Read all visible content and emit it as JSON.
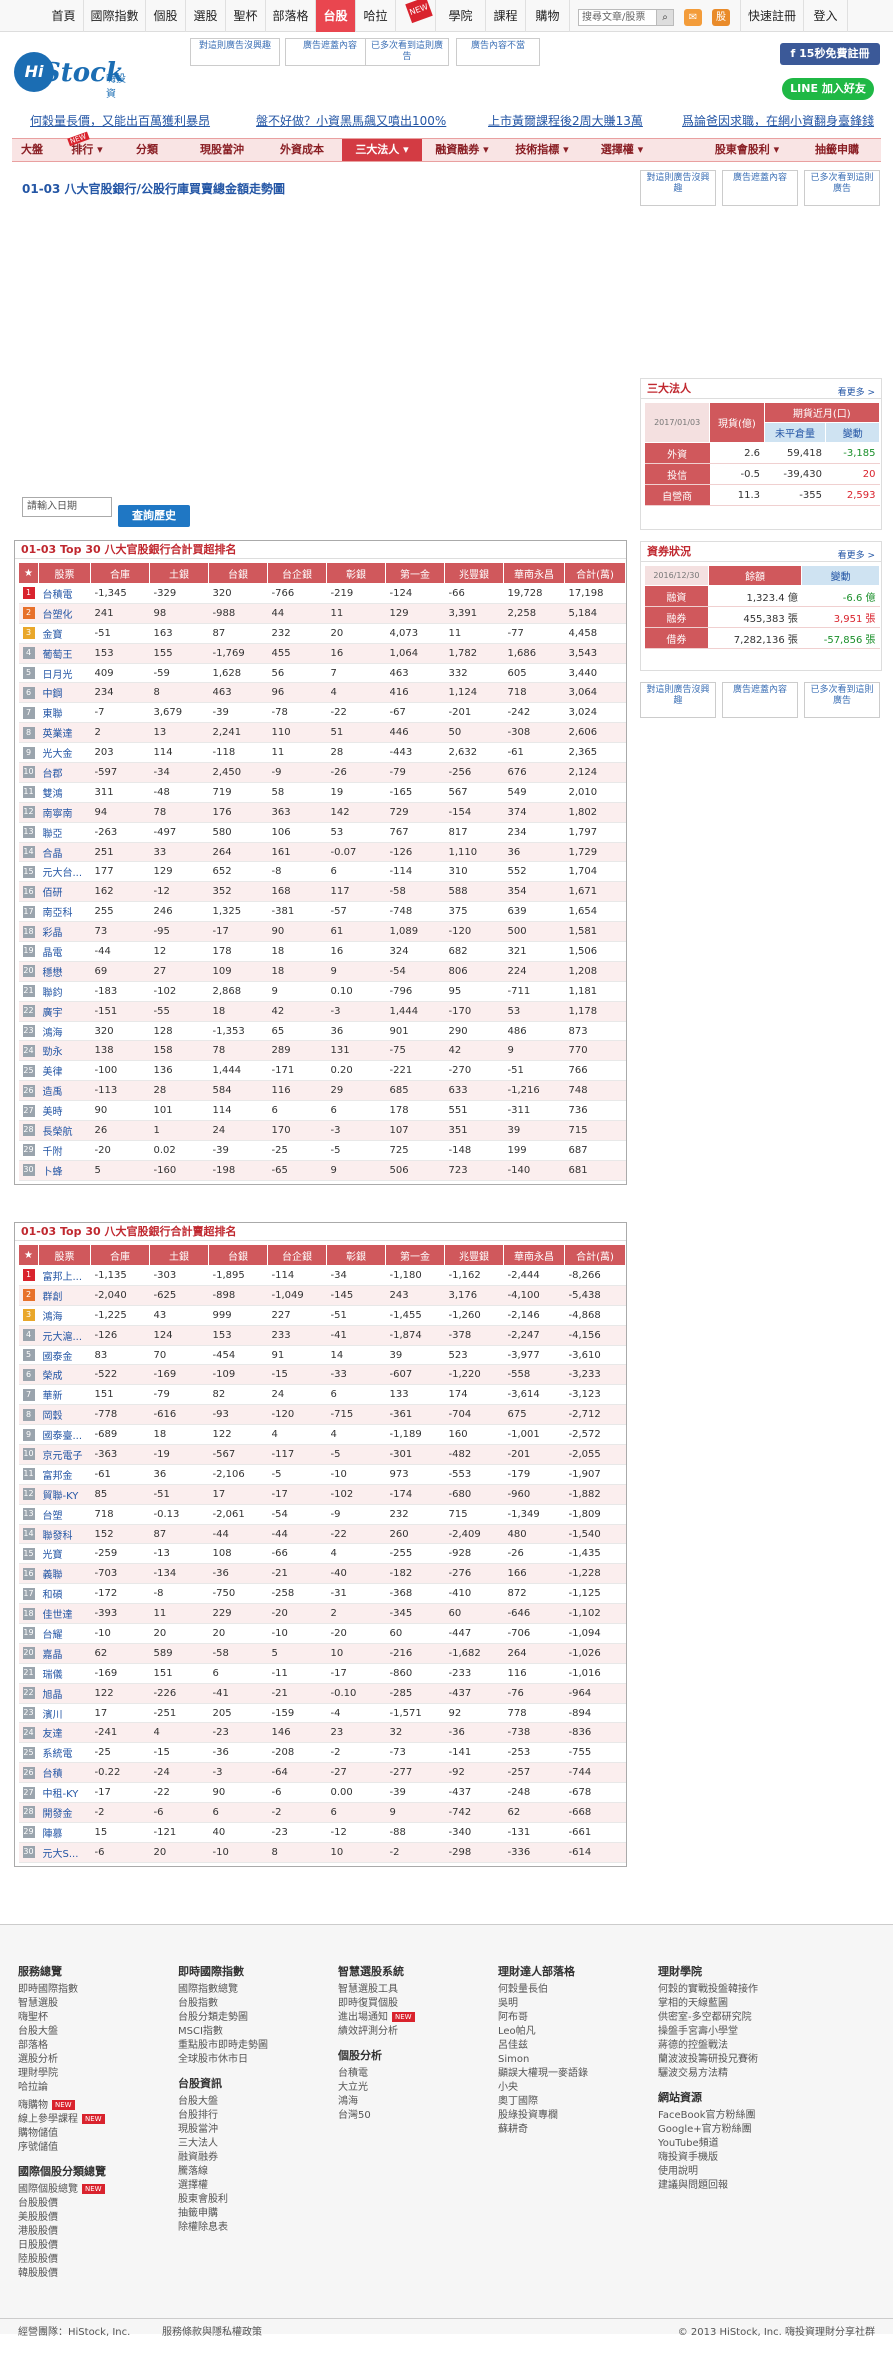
{
  "topnav": {
    "items": [
      "首頁",
      "國際指數",
      "個股",
      "選股",
      "聖杯",
      "部落格",
      "台股",
      "哈拉",
      "",
      "學院",
      "課程",
      "購物"
    ],
    "right": [
      "快速註冊",
      "登入"
    ],
    "search_placeholder": "搜尋文章/股票",
    "new_tag": "NEW"
  },
  "logo": {
    "hi": "Hi",
    "stock": "Stock",
    "sub": "嗨投資"
  },
  "ads": {
    "header": [
      "對這則廣告沒興趣",
      "廣告遮蓋內容",
      "已多次看到這則廣告",
      "廣告內容不當"
    ],
    "side": [
      "對這則廣告沒興趣",
      "廣告遮蓋內容",
      "已多次看到這則廣告"
    ]
  },
  "social": {
    "fb": "15秒免費註冊",
    "line": "加入好友"
  },
  "promos": [
    "何穀量長價，又能出百萬獲利暴昂",
    "盤不好做？小資黑馬飆又噴出100%",
    "上市黃爾課程後2周大賺13萬",
    "爲論爸因求職，在網小資翻身臺鋒錢"
  ],
  "mainnav": [
    "大盤",
    "排行 ▾",
    "分類",
    "現股當沖",
    "外資成本",
    "三大法人 ▾",
    "融資融券 ▾",
    "技術指標 ▾",
    "選擇權 ▾",
    "股東會股利 ▾",
    "抽籤申購"
  ],
  "page_title": "01-03 八大官股銀行/公股行庫買賣總金額走勢圖",
  "date_input": "請輸入日期",
  "query_btn": "查詢歷史",
  "headers": [
    "★",
    "股票",
    "合庫",
    "土銀",
    "台銀",
    "台企銀",
    "彰銀",
    "第一金",
    "兆豐銀",
    "華南永昌",
    "合計(萬)"
  ],
  "buy_table": {
    "title": "01-03 Top 30 八大官股銀行合計買超排名",
    "rows": [
      [
        "台積電",
        "-1,345",
        "-329",
        "320",
        "-766",
        "-219",
        "-124",
        "-66",
        "19,728",
        "17,198"
      ],
      [
        "台塑化",
        "241",
        "98",
        "-988",
        "44",
        "11",
        "129",
        "3,391",
        "2,258",
        "5,184"
      ],
      [
        "金寶",
        "-51",
        "163",
        "87",
        "232",
        "20",
        "4,073",
        "11",
        "-77",
        "4,458"
      ],
      [
        "葡萄王",
        "153",
        "155",
        "-1,769",
        "455",
        "16",
        "1,064",
        "1,782",
        "1,686",
        "3,543"
      ],
      [
        "日月光",
        "409",
        "-59",
        "1,628",
        "56",
        "7",
        "463",
        "332",
        "605",
        "3,440"
      ],
      [
        "中鋼",
        "234",
        "8",
        "463",
        "96",
        "4",
        "416",
        "1,124",
        "718",
        "3,064"
      ],
      [
        "東聯",
        "-7",
        "3,679",
        "-39",
        "-78",
        "-22",
        "-67",
        "-201",
        "-242",
        "3,024"
      ],
      [
        "英業達",
        "2",
        "13",
        "2,241",
        "110",
        "51",
        "446",
        "50",
        "-308",
        "2,606"
      ],
      [
        "光大金",
        "203",
        "114",
        "-118",
        "11",
        "28",
        "-443",
        "2,632",
        "-61",
        "2,365"
      ],
      [
        "台郡",
        "-597",
        "-34",
        "2,450",
        "-9",
        "-26",
        "-79",
        "-256",
        "676",
        "2,124"
      ],
      [
        "雙鴻",
        "311",
        "-48",
        "719",
        "58",
        "19",
        "-165",
        "567",
        "549",
        "2,010"
      ],
      [
        "南寧南",
        "94",
        "78",
        "176",
        "363",
        "142",
        "729",
        "-154",
        "374",
        "1,802"
      ],
      [
        "聯亞",
        "-263",
        "-497",
        "580",
        "106",
        "53",
        "767",
        "817",
        "234",
        "1,797"
      ],
      [
        "合晶",
        "251",
        "33",
        "264",
        "161",
        "-0.07",
        "-126",
        "1,110",
        "36",
        "1,729"
      ],
      [
        "元大台...",
        "177",
        "129",
        "652",
        "-8",
        "6",
        "-114",
        "310",
        "552",
        "1,704"
      ],
      [
        "佰研",
        "162",
        "-12",
        "352",
        "168",
        "117",
        "-58",
        "588",
        "354",
        "1,671"
      ],
      [
        "南亞科",
        "255",
        "246",
        "1,325",
        "-381",
        "-57",
        "-748",
        "375",
        "639",
        "1,654"
      ],
      [
        "彩晶",
        "73",
        "-95",
        "-17",
        "90",
        "61",
        "1,089",
        "-120",
        "500",
        "1,581"
      ],
      [
        "晶電",
        "-44",
        "12",
        "178",
        "18",
        "16",
        "324",
        "682",
        "321",
        "1,506"
      ],
      [
        "穩懋",
        "69",
        "27",
        "109",
        "18",
        "9",
        "-54",
        "806",
        "224",
        "1,208"
      ],
      [
        "聯鈞",
        "-183",
        "-102",
        "2,868",
        "9",
        "0.10",
        "-796",
        "95",
        "-711",
        "1,181"
      ],
      [
        "廣宇",
        "-151",
        "-55",
        "18",
        "42",
        "-3",
        "1,444",
        "-170",
        "53",
        "1,178"
      ],
      [
        "鴻海",
        "320",
        "128",
        "-1,353",
        "65",
        "36",
        "901",
        "290",
        "486",
        "873"
      ],
      [
        "勁永",
        "138",
        "158",
        "78",
        "289",
        "131",
        "-75",
        "42",
        "9",
        "770"
      ],
      [
        "美律",
        "-100",
        "136",
        "1,444",
        "-171",
        "0.20",
        "-221",
        "-270",
        "-51",
        "766"
      ],
      [
        "造禹",
        "-113",
        "28",
        "584",
        "116",
        "29",
        "685",
        "633",
        "-1,216",
        "748"
      ],
      [
        "美時",
        "90",
        "101",
        "114",
        "6",
        "6",
        "178",
        "551",
        "-311",
        "736"
      ],
      [
        "長榮航",
        "26",
        "1",
        "24",
        "170",
        "-3",
        "107",
        "351",
        "39",
        "715"
      ],
      [
        "千附",
        "-20",
        "0.02",
        "-39",
        "-25",
        "-5",
        "725",
        "-148",
        "199",
        "687"
      ],
      [
        "卜蜂",
        "5",
        "-160",
        "-198",
        "-65",
        "9",
        "506",
        "723",
        "-140",
        "681"
      ]
    ]
  },
  "sell_table": {
    "title": "01-03 Top 30 八大官股銀行合計賣超排名",
    "rows": [
      [
        "富邦上...",
        "-1,135",
        "-303",
        "-1,895",
        "-114",
        "-34",
        "-1,180",
        "-1,162",
        "-2,444",
        "-8,266"
      ],
      [
        "群創",
        "-2,040",
        "-625",
        "-898",
        "-1,049",
        "-145",
        "243",
        "3,176",
        "-4,100",
        "-5,438"
      ],
      [
        "鴻海",
        "-1,225",
        "43",
        "999",
        "227",
        "-51",
        "-1,455",
        "-1,260",
        "-2,146",
        "-4,868"
      ],
      [
        "元大滬...",
        "-126",
        "124",
        "153",
        "233",
        "-41",
        "-1,874",
        "-378",
        "-2,247",
        "-4,156"
      ],
      [
        "國泰金",
        "83",
        "70",
        "-454",
        "91",
        "14",
        "39",
        "523",
        "-3,977",
        "-3,610"
      ],
      [
        "榮成",
        "-522",
        "-169",
        "-109",
        "-15",
        "-33",
        "-607",
        "-1,220",
        "-558",
        "-3,233"
      ],
      [
        "華新",
        "151",
        "-79",
        "82",
        "24",
        "6",
        "133",
        "174",
        "-3,614",
        "-3,123"
      ],
      [
        "岡穀",
        "-778",
        "-616",
        "-93",
        "-120",
        "-715",
        "-361",
        "-704",
        "675",
        "-2,712"
      ],
      [
        "國泰臺...",
        "-689",
        "18",
        "122",
        "4",
        "4",
        "-1,189",
        "160",
        "-1,001",
        "-2,572"
      ],
      [
        "京元電子",
        "-363",
        "-19",
        "-567",
        "-117",
        "-5",
        "-301",
        "-482",
        "-201",
        "-2,055"
      ],
      [
        "富邦金",
        "-61",
        "36",
        "-2,106",
        "-5",
        "-10",
        "973",
        "-553",
        "-179",
        "-1,907"
      ],
      [
        "貿聯-KY",
        "85",
        "-51",
        "17",
        "-17",
        "-102",
        "-174",
        "-680",
        "-960",
        "-1,882"
      ],
      [
        "台塑",
        "718",
        "-0.13",
        "-2,061",
        "-54",
        "-9",
        "232",
        "715",
        "-1,349",
        "-1,809"
      ],
      [
        "聯發科",
        "152",
        "87",
        "-44",
        "-44",
        "-22",
        "260",
        "-2,409",
        "480",
        "-1,540"
      ],
      [
        "光寶",
        "-259",
        "-13",
        "108",
        "-66",
        "4",
        "-255",
        "-928",
        "-26",
        "-1,435"
      ],
      [
        "義聯",
        "-703",
        "-134",
        "-36",
        "-21",
        "-40",
        "-182",
        "-276",
        "166",
        "-1,228"
      ],
      [
        "和碩",
        "-172",
        "-8",
        "-750",
        "-258",
        "-31",
        "-368",
        "-410",
        "872",
        "-1,125"
      ],
      [
        "佳世達",
        "-393",
        "11",
        "229",
        "-20",
        "2",
        "-345",
        "60",
        "-646",
        "-1,102"
      ],
      [
        "台耀",
        "-10",
        "20",
        "20",
        "-10",
        "-20",
        "60",
        "-447",
        "-706",
        "-1,094"
      ],
      [
        "嘉晶",
        "62",
        "589",
        "-58",
        "5",
        "10",
        "-216",
        "-1,682",
        "264",
        "-1,026"
      ],
      [
        "瑞儀",
        "-169",
        "151",
        "6",
        "-11",
        "-17",
        "-860",
        "-233",
        "116",
        "-1,016"
      ],
      [
        "旭晶",
        "122",
        "-226",
        "-41",
        "-21",
        "-0.10",
        "-285",
        "-437",
        "-76",
        "-964"
      ],
      [
        "濱川",
        "17",
        "-251",
        "205",
        "-159",
        "-4",
        "-1,571",
        "92",
        "778",
        "-894"
      ],
      [
        "友達",
        "-241",
        "4",
        "-23",
        "146",
        "23",
        "32",
        "-36",
        "-738",
        "-836"
      ],
      [
        "系統電",
        "-25",
        "-15",
        "-36",
        "-208",
        "-2",
        "-73",
        "-141",
        "-253",
        "-755"
      ],
      [
        "台積",
        "-0.22",
        "-24",
        "-3",
        "-64",
        "-27",
        "-277",
        "-92",
        "-257",
        "-744"
      ],
      [
        "中租-KY",
        "-17",
        "-22",
        "90",
        "-6",
        "0.00",
        "-39",
        "-437",
        "-248",
        "-678"
      ],
      [
        "開發金",
        "-2",
        "-6",
        "6",
        "-2",
        "6",
        "9",
        "-742",
        "62",
        "-668"
      ],
      [
        "陣慕",
        "15",
        "-121",
        "40",
        "-23",
        "-12",
        "-88",
        "-340",
        "-131",
        "-661"
      ],
      [
        "元大S...",
        "-6",
        "20",
        "-10",
        "8",
        "10",
        "-2",
        "-298",
        "-336",
        "-614"
      ]
    ]
  },
  "institutional": {
    "title": "三大法人",
    "more": "看更多 >",
    "date": "2017/01/03",
    "col_spot": "現貨(億)",
    "col_futures": "期貨近月(口)",
    "col_open": "未平倉量",
    "col_change": "變動",
    "rows": [
      {
        "label": "外資",
        "spot": "2.6",
        "open": "59,418",
        "change": "-3,185"
      },
      {
        "label": "投信",
        "spot": "-0.5",
        "open": "-39,430",
        "change": "20"
      },
      {
        "label": "自營商",
        "spot": "11.3",
        "open": "-355",
        "change": "2,593"
      }
    ]
  },
  "margin": {
    "title": "資券狀況",
    "more": "看更多 >",
    "date": "2016/12/30",
    "col_balance": "餘額",
    "col_change": "變動",
    "rows": [
      {
        "label": "融資",
        "balance": "1,323.4 億",
        "change": "-6.6 億"
      },
      {
        "label": "融券",
        "balance": "455,383 張",
        "change": "3,951 張"
      },
      {
        "label": "借券",
        "balance": "7,282,136 張",
        "change": "-57,856 張"
      }
    ]
  },
  "footer": {
    "cols": [
      {
        "groups": [
          {
            "h": "服務總覽",
            "items": [
              "即時國際指數",
              "智慧選股",
              "嗨聖杯",
              "台股大盤",
              "部落格",
              "選股分析",
              "理財學院",
              "哈拉論"
            ]
          },
          {
            "h": "",
            "items": [
              "嗨購物",
              "線上參學課程",
              "購物儲值",
              "序號儲值"
            ]
          },
          {
            "h": "國際個股分類總覽",
            "items": [
              "國際個股總覽",
              "台股股價",
              "美股股價",
              "港股股價",
              "日股股價",
              "陸股股價",
              "韓股股價"
            ]
          }
        ]
      },
      {
        "groups": [
          {
            "h": "即時國際指數",
            "items": [
              "國際指數總覽",
              "台股指數",
              "台股分類走勢圖",
              "MSCI指數",
              "重點股市即時走勢圖",
              "全球股市休市日"
            ]
          },
          {
            "h": "台股資訊",
            "items": [
              "台股大盤",
              "台股排行",
              "現股當沖",
              "三大法人",
              "融資融券",
              "騰落線",
              "選擇權",
              "股東會股利",
              "抽籤申購",
              "除權除息表"
            ]
          }
        ]
      },
      {
        "groups": [
          {
            "h": "智慧選股系統",
            "items": [
              "智慧選股工具",
              "即時復買個股",
              "進出場通知",
              "績效評測分析"
            ]
          },
          {
            "h": "個股分析",
            "items": [
              "台積電",
              "大立光",
              "鴻海",
              "台灣50"
            ]
          }
        ]
      },
      {
        "groups": [
          {
            "h": "理財達人部落格",
            "items": [
              "何穀量長伯",
              "吳明",
              "阿布哥",
              "Leo帕凡",
              "呂佳兹",
              "Simon",
              "顯誤大權現一麥語錄",
              "小央",
              "奧丁國際",
              "股綠投資專欄",
              "蘇耕奇"
            ]
          }
        ]
      },
      {
        "groups": [
          {
            "h": "理財學院",
            "items": [
              "何穀的實戰投盤韓接作",
              "掌相的天線藍圖",
              "供密室-多空都研究院",
              "操盤手宮壽小學堂",
              "蔣德的控盤戰法",
              "蘭波波投籌研投兄賽術",
              "驪波交易方法精"
            ]
          },
          {
            "h": "網站資源",
            "items": [
              "FaceBook官方粉絲團",
              "Google+官方粉絲團",
              "YouTube頻道",
              "嗨投資手機版",
              "使用說明",
              "建議與問題回報"
            ]
          }
        ]
      }
    ],
    "new_label": "NEW"
  },
  "copyright": {
    "left1": "經營團隊：HiStock, Inc.",
    "left2": "服務條款與隱私權政策",
    "right": "© 2013 HiStock, Inc. 嗨投資理財分享社群"
  }
}
